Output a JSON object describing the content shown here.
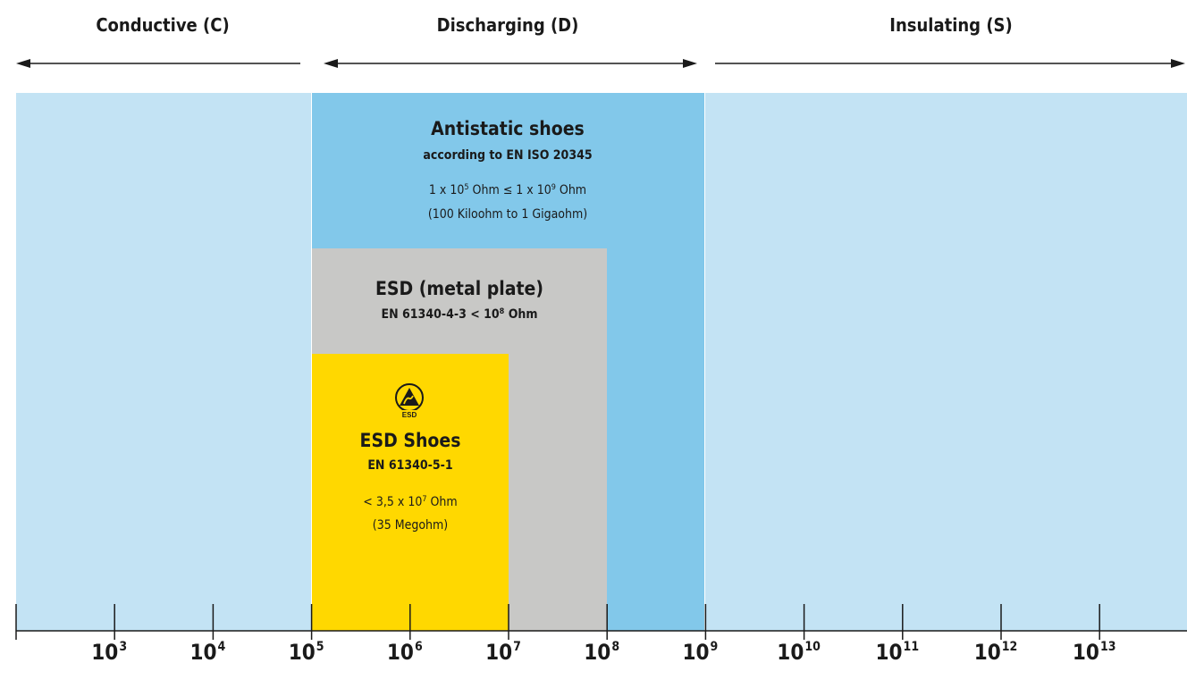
{
  "zones": {
    "conductive": "Conductive (C)",
    "discharging": "Discharging (D)",
    "insulating": "Insulating (S)"
  },
  "boxes": {
    "antistatic": {
      "title": "Antistatic shoes",
      "standard": "according to EN ISO 20345",
      "range_pre": "1 x 10",
      "range_exp1": "5",
      "range_mid": " Ohm ≤ 1 x 10",
      "range_exp2": "9",
      "range_post": " Ohm",
      "range_words": "(100 Kiloohm to 1 Gigaohm)"
    },
    "esd_plate": {
      "title": "ESD (metal plate)",
      "standard_pre": "EN 61340-4-3 < 10",
      "standard_exp": "8",
      "standard_post": " Ohm"
    },
    "esd_shoes": {
      "title": "ESD Shoes",
      "standard": "EN 61340-5-1",
      "value_pre": "< 3,5 x 10",
      "value_exp": "7",
      "value_post": " Ohm",
      "value_words": "(35 Megohm)",
      "logo_text": "ESD"
    }
  },
  "axis": {
    "ticks": [
      {
        "base": "10",
        "exp": "3"
      },
      {
        "base": "10",
        "exp": "4"
      },
      {
        "base": "10",
        "exp": "5"
      },
      {
        "base": "10",
        "exp": "6"
      },
      {
        "base": "10",
        "exp": "7"
      },
      {
        "base": "10",
        "exp": "8"
      },
      {
        "base": "10",
        "exp": "9"
      },
      {
        "base": "10",
        "exp": "10"
      },
      {
        "base": "10",
        "exp": "11"
      },
      {
        "base": "10",
        "exp": "12"
      },
      {
        "base": "10",
        "exp": "13"
      }
    ]
  },
  "colors": {
    "light_blue": "#c3e3f4",
    "mid_blue": "#82c8ea",
    "grey": "#c8c8c6",
    "yellow": "#ffd800",
    "text": "#1a1a1a"
  }
}
